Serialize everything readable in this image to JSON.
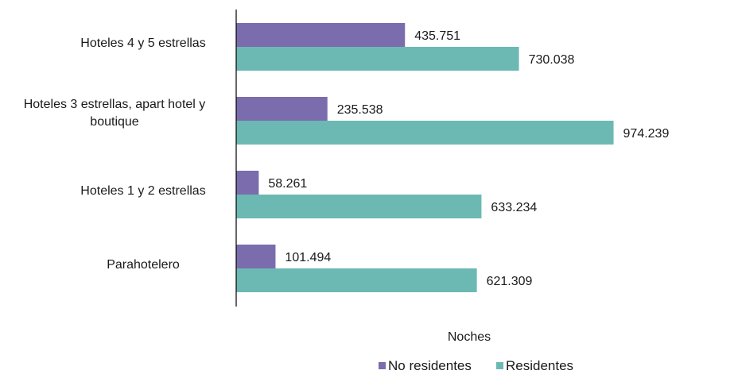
{
  "chart_data": {
    "type": "bar",
    "orientation": "horizontal",
    "categories": [
      [
        "Hoteles 4 y 5 estrellas"
      ],
      [
        "Hoteles 3 estrellas, apart hotel y",
        "boutique"
      ],
      [
        "Hoteles 1 y 2 estrellas"
      ],
      [
        "Parahotelero"
      ]
    ],
    "series": [
      {
        "name": "No residentes",
        "color": "#7b6cad",
        "values": [
          435751,
          235538,
          58261,
          101494
        ],
        "labels": [
          "435.751",
          "235.538",
          "58.261",
          "101.494"
        ]
      },
      {
        "name": "Residentes",
        "color": "#6cb9b3",
        "values": [
          730038,
          974239,
          633234,
          621309
        ],
        "labels": [
          "730.038",
          "974.239",
          "633.234",
          "621.309"
        ]
      }
    ],
    "xlabel": "Noches",
    "xlim": [
      0,
      1160000
    ],
    "grid": false,
    "legend_position": "bottom"
  }
}
